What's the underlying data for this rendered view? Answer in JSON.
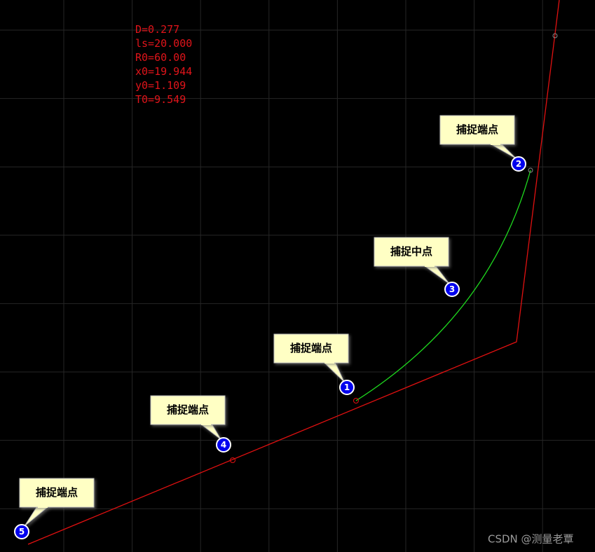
{
  "parameters": [
    "D=0.277",
    "ls=20.000",
    "R0=60.00",
    "x0=19.944",
    "y0=1.109",
    "T0=9.549"
  ],
  "callouts": [
    {
      "number": 1,
      "label": "捕捉端点"
    },
    {
      "number": 2,
      "label": "捕捉端点"
    },
    {
      "number": 3,
      "label": "捕捉中点"
    },
    {
      "number": 4,
      "label": "捕捉端点"
    },
    {
      "number": 5,
      "label": "捕捉端点"
    }
  ],
  "watermark": "CSDN @测量老覃"
}
